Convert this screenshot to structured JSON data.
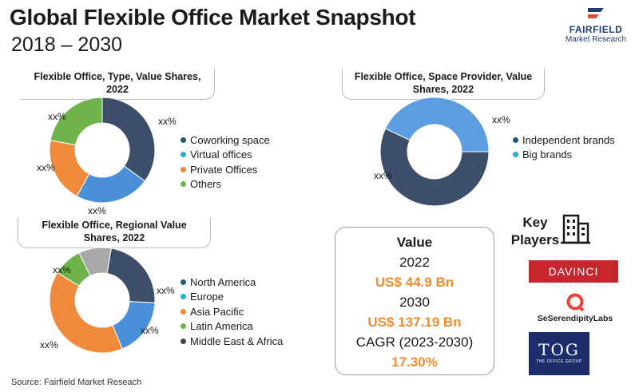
{
  "header": {
    "title": "Global Flexible Office Market Snapshot",
    "subtitle": "2018 – 2030"
  },
  "logo": {
    "name": "FAIRFIELD",
    "tagline": "Market Research"
  },
  "chart_data": [
    {
      "type": "pie",
      "donut": true,
      "title": "Flexible Office, Type, Value Shares, 2022",
      "categories": [
        "Coworking space",
        "Virtual offices",
        "Private Offices",
        "Others"
      ],
      "values": [
        35,
        23,
        20,
        22
      ],
      "data_labels": [
        "xx%",
        "xx%",
        "xx%",
        "xx%"
      ],
      "colors": [
        "#3c4e69",
        "#4a90d9",
        "#ef8a3c",
        "#6fb34a"
      ],
      "legend_colors": [
        "#1f5a7a",
        "#27b0c9",
        "#ef8a3c",
        "#6fb34a"
      ],
      "legend_position": "right"
    },
    {
      "type": "pie",
      "donut": true,
      "title": "Flexible Office, Space Provider, Value Shares, 2022",
      "categories": [
        "Independent brands",
        "Big brands"
      ],
      "values": [
        57,
        43
      ],
      "data_labels": [
        "xx%",
        "xx%"
      ],
      "colors": [
        "#3c4e69",
        "#5b9de0"
      ],
      "legend_colors": [
        "#1f5a7a",
        "#27b0c9"
      ],
      "legend_position": "right"
    },
    {
      "type": "pie",
      "donut": true,
      "title": "Flexible Office, Regional Value Shares, 2022",
      "categories": [
        "North America",
        "Europe",
        "Asia Pacific",
        "Latin America",
        "Middle East & Africa"
      ],
      "values": [
        23,
        18,
        40,
        9,
        10
      ],
      "data_labels": [
        "xx%",
        "xx%",
        "xx%",
        "xx%",
        "xx%"
      ],
      "colors": [
        "#3c4e69",
        "#4a90d9",
        "#ef8a3c",
        "#6fb34a",
        "#a8a8a8"
      ],
      "legend_colors": [
        "#1f5a7a",
        "#27b0c9",
        "#ef8a3c",
        "#6fb34a",
        "#444444"
      ],
      "legend_position": "right"
    }
  ],
  "value_box": {
    "heading": "Value",
    "year1": "2022",
    "value1": "US$ 44.9 Bn",
    "year2": "2030",
    "value2": "US$ 137.19 Bn",
    "cagr_label": "CAGR (2023-2030)",
    "cagr_value": "17.30%"
  },
  "key_players": {
    "label": "Key Players",
    "players": [
      "DAVINCI",
      "SeSerendipityLabs",
      "TOG",
      "THE OFFICE GROUP"
    ]
  },
  "source": "Source: Fairfield Market Reseach"
}
